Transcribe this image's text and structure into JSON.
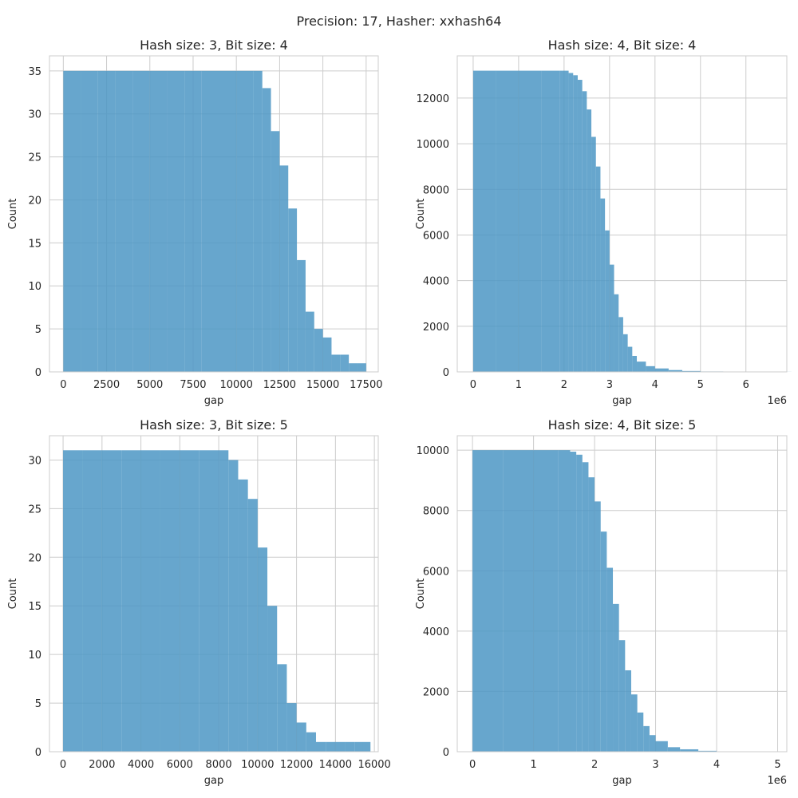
{
  "suptitle": "Precision: 17, Hasher: xxhash64",
  "chart_data": [
    {
      "type": "bar",
      "title": "Hash size: 3, Bit size: 4",
      "xlabel": "gap",
      "ylabel": "Count",
      "xlim": [
        -800,
        18200
      ],
      "ylim": [
        0,
        36.75
      ],
      "xticks": [
        0,
        2500,
        5000,
        7500,
        10000,
        12500,
        15000,
        17500
      ],
      "xtick_labels": [
        "0",
        "2500",
        "5000",
        "7500",
        "10000",
        "12500",
        "15000",
        "17500"
      ],
      "yticks": [
        0,
        5,
        10,
        15,
        20,
        25,
        30,
        35
      ],
      "ytick_labels": [
        "0",
        "5",
        "10",
        "15",
        "20",
        "25",
        "30",
        "35"
      ],
      "offset_label": "",
      "color": "#4c96c4",
      "x": [
        0,
        1000,
        2000,
        3000,
        4000,
        5000,
        6000,
        7000,
        8000,
        9000,
        10000,
        11000,
        11500,
        12000,
        12500,
        13000,
        13500,
        14000,
        14500,
        15000,
        15500,
        16000,
        16500,
        17000
      ],
      "values": [
        35,
        35,
        35,
        35,
        35,
        35,
        35,
        35,
        35,
        35,
        35,
        35,
        33,
        28,
        24,
        19,
        13,
        7,
        5,
        4,
        2,
        2,
        1,
        1
      ]
    },
    {
      "type": "bar",
      "title": "Hash size: 4, Bit size: 4",
      "xlabel": "gap",
      "ylabel": "Count",
      "xlim": [
        -0.35,
        6.9
      ],
      "ylim": [
        0,
        13850
      ],
      "xticks": [
        0,
        1,
        2,
        3,
        4,
        5,
        6
      ],
      "xtick_labels": [
        "0",
        "1",
        "2",
        "3",
        "4",
        "5",
        "6"
      ],
      "yticks": [
        0,
        2000,
        4000,
        6000,
        8000,
        10000,
        12000
      ],
      "ytick_labels": [
        "0",
        "2000",
        "4000",
        "6000",
        "8000",
        "10000",
        "12000"
      ],
      "offset_label": "1e6",
      "color": "#4c96c4",
      "x": [
        0,
        0.5,
        1.0,
        1.5,
        1.9,
        2.1,
        2.2,
        2.3,
        2.4,
        2.5,
        2.6,
        2.7,
        2.8,
        2.9,
        3.0,
        3.1,
        3.2,
        3.3,
        3.4,
        3.5,
        3.6,
        3.8,
        4.0,
        4.3,
        4.6,
        5.0,
        5.5,
        6.0,
        6.5
      ],
      "values": [
        13200,
        13200,
        13200,
        13200,
        13200,
        13100,
        13000,
        12800,
        12300,
        11500,
        10300,
        9000,
        7600,
        6200,
        4700,
        3400,
        2400,
        1650,
        1100,
        700,
        450,
        250,
        150,
        80,
        40,
        20,
        10,
        5,
        3
      ]
    },
    {
      "type": "bar",
      "title": "Hash size: 3, Bit size: 5",
      "xlabel": "gap",
      "ylabel": "Count",
      "xlim": [
        -700,
        16200
      ],
      "ylim": [
        0,
        32.5
      ],
      "xticks": [
        0,
        2000,
        4000,
        6000,
        8000,
        10000,
        12000,
        14000,
        16000
      ],
      "xtick_labels": [
        "0",
        "2000",
        "4000",
        "6000",
        "8000",
        "10000",
        "12000",
        "14000",
        "16000"
      ],
      "yticks": [
        0,
        5,
        10,
        15,
        20,
        25,
        30
      ],
      "ytick_labels": [
        "0",
        "5",
        "10",
        "15",
        "20",
        "25",
        "30"
      ],
      "offset_label": "",
      "color": "#4c96c4",
      "x": [
        0,
        1000,
        2000,
        3000,
        4000,
        5000,
        6000,
        7000,
        8000,
        8500,
        9000,
        9500,
        10000,
        10500,
        11000,
        11500,
        12000,
        12500,
        13000,
        13500,
        14000,
        14500,
        15000,
        15400
      ],
      "values": [
        31,
        31,
        31,
        31,
        31,
        31,
        31,
        31,
        31,
        30,
        28,
        26,
        21,
        15,
        9,
        5,
        3,
        2,
        1,
        1,
        1,
        1,
        1,
        1
      ]
    },
    {
      "type": "bar",
      "title": "Hash size: 4, Bit size: 5",
      "xlabel": "gap",
      "ylabel": "Count",
      "xlim": [
        -0.25,
        5.15
      ],
      "ylim": [
        0,
        10480
      ],
      "xticks": [
        0,
        1,
        2,
        3,
        4,
        5
      ],
      "xtick_labels": [
        "0",
        "1",
        "2",
        "3",
        "4",
        "5"
      ],
      "yticks": [
        0,
        2000,
        4000,
        6000,
        8000,
        10000
      ],
      "ytick_labels": [
        "0",
        "2000",
        "4000",
        "6000",
        "8000",
        "10000"
      ],
      "offset_label": "1e6",
      "color": "#4c96c4",
      "x": [
        0,
        0.5,
        1.0,
        1.4,
        1.6,
        1.7,
        1.8,
        1.9,
        2.0,
        2.1,
        2.2,
        2.3,
        2.4,
        2.5,
        2.6,
        2.7,
        2.8,
        2.9,
        3.0,
        3.2,
        3.4,
        3.7,
        4.0,
        4.5
      ],
      "values": [
        10000,
        10000,
        10000,
        10000,
        9950,
        9850,
        9600,
        9100,
        8300,
        7300,
        6100,
        4900,
        3700,
        2700,
        1900,
        1300,
        850,
        550,
        350,
        150,
        80,
        30,
        10,
        3
      ]
    }
  ]
}
